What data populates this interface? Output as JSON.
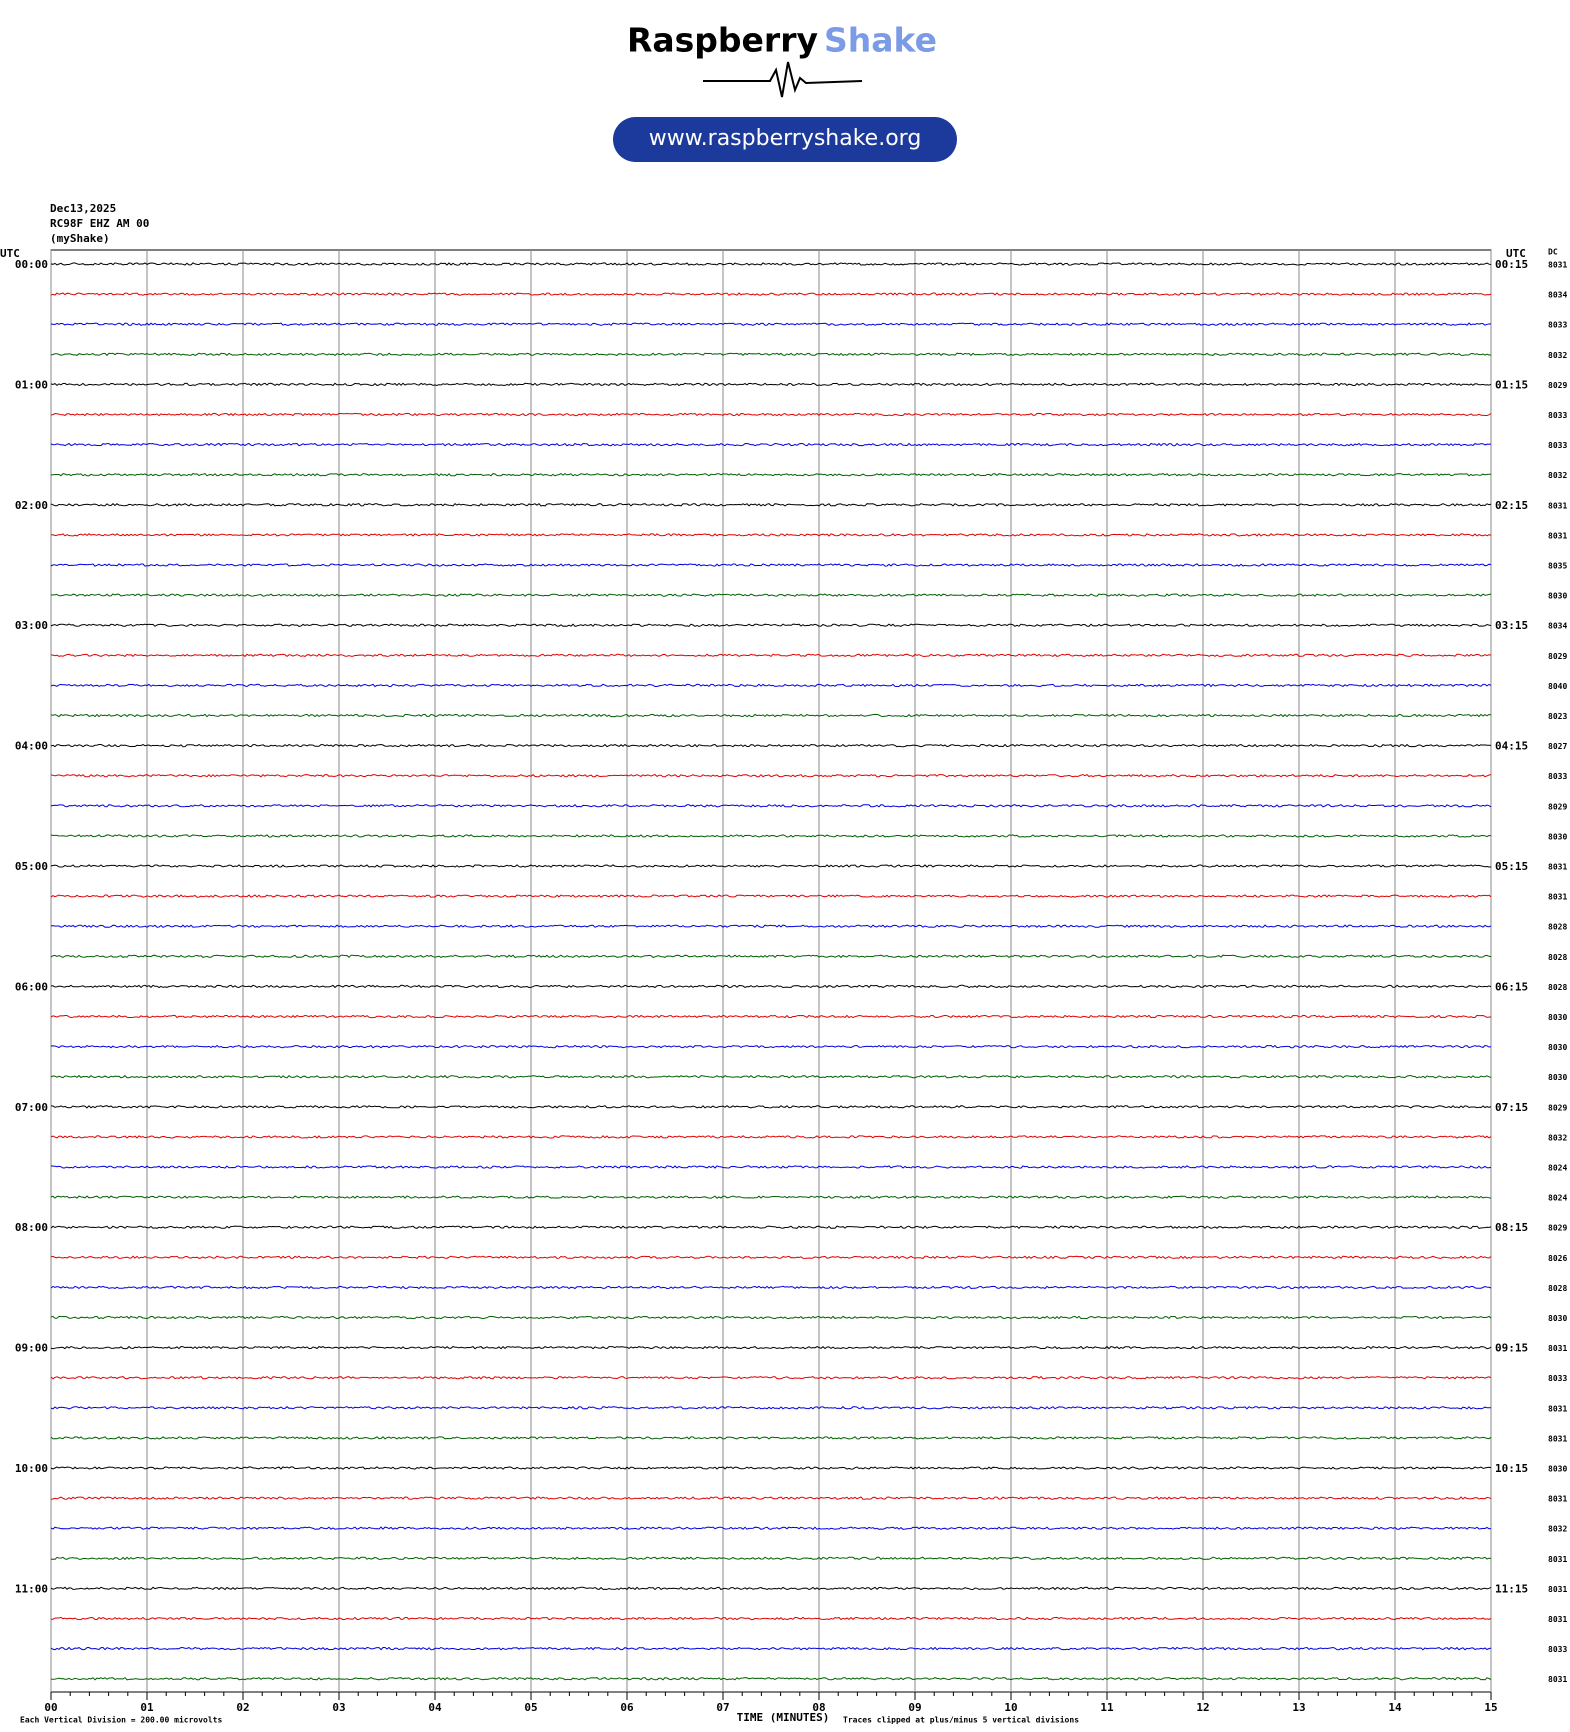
{
  "chart_data": {
    "type": "helicorder",
    "logo": {
      "word1": "Raspberry",
      "word2": "Shake",
      "url": "www.raspberryshake.org"
    },
    "date": "Dec13,2025",
    "station": "RC98F EHZ AM 00",
    "owner": "(myShake)",
    "left_header": "UTC",
    "right_header": "UTC",
    "dc_header": "DC",
    "left_labels": [
      "00:00",
      "01:00",
      "02:00",
      "03:00",
      "04:00",
      "05:00",
      "06:00",
      "07:00",
      "08:00",
      "09:00",
      "10:00",
      "11:00"
    ],
    "right_labels": [
      "00:15",
      "01:15",
      "02:15",
      "03:15",
      "04:15",
      "05:15",
      "06:15",
      "07:15",
      "08:15",
      "09:15",
      "10:15",
      "11:15"
    ],
    "dc_values": [
      8031,
      8034,
      8033,
      8032,
      8029,
      8033,
      8033,
      8032,
      8031,
      8031,
      8035,
      8030,
      8034,
      8029,
      8040,
      8023,
      8027,
      8033,
      8029,
      8030,
      8031,
      8031,
      8028,
      8028,
      8028,
      8030,
      8030,
      8030,
      8029,
      8032,
      8024,
      8024,
      8029,
      8026,
      8028,
      8030,
      8031,
      8033,
      8031,
      8031,
      8030,
      8031,
      8032,
      8031,
      8031,
      8031,
      8033,
      8031
    ],
    "colors": [
      "#000000",
      "#e00000",
      "#0000e0",
      "#006000"
    ],
    "xlabel": "TIME (MINUTES)",
    "xlim": [
      0,
      15
    ],
    "xticks": [
      {
        "value": 0,
        "label": "00"
      },
      {
        "value": 1,
        "label": "01"
      },
      {
        "value": 2,
        "label": "02"
      },
      {
        "value": 3,
        "label": "03"
      },
      {
        "value": 4,
        "label": "04"
      },
      {
        "value": 5,
        "label": "05"
      },
      {
        "value": 6,
        "label": "06"
      },
      {
        "value": 7,
        "label": "07"
      },
      {
        "value": 8,
        "label": "08"
      },
      {
        "value": 9,
        "label": "09"
      },
      {
        "value": 10,
        "label": "10"
      },
      {
        "value": 11,
        "label": "11"
      },
      {
        "value": 12,
        "label": "12"
      },
      {
        "value": 13,
        "label": "13"
      },
      {
        "value": 14,
        "label": "14"
      },
      {
        "value": 15,
        "label": "15"
      }
    ],
    "scale_note": "Each Vertical Division =  200.00 microvolts",
    "clip_note": "Traces clipped at plus/minus 5 vertical divisions"
  }
}
